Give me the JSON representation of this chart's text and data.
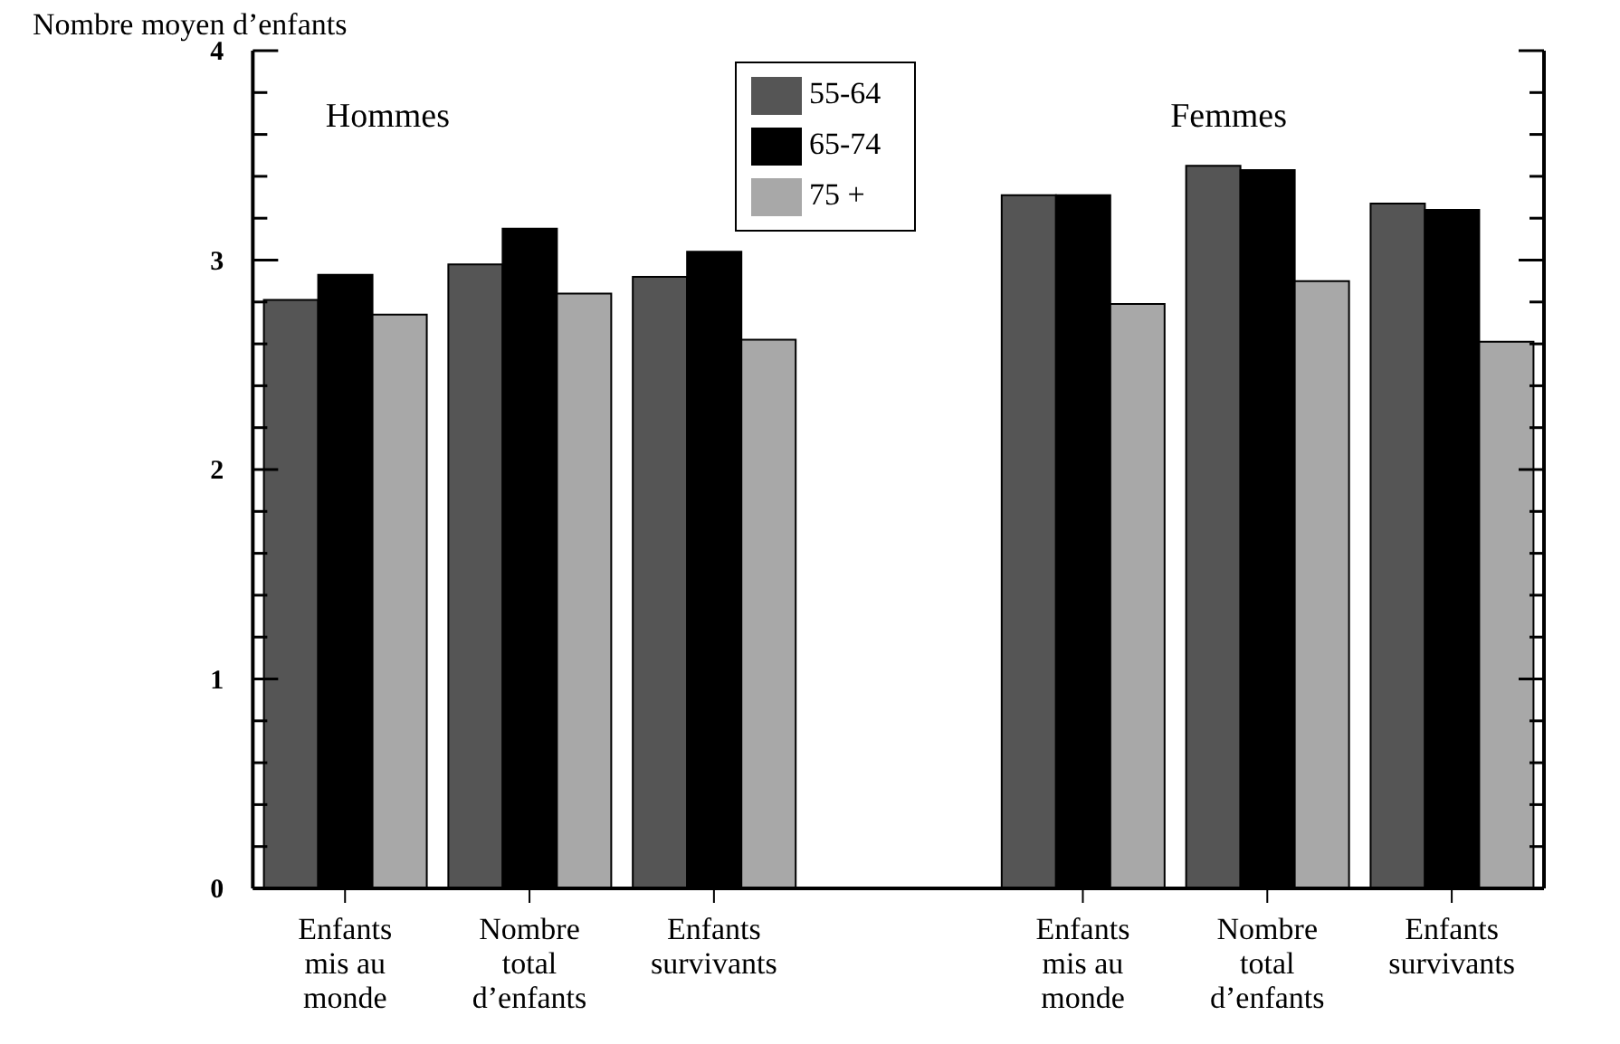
{
  "chart_data": {
    "type": "bar",
    "ylabel": "Nombre moyen d’enfants",
    "categories": [
      "Enfants mis au monde",
      "Nombre total d’enfants",
      "Enfants survivants",
      null,
      "Enfants mis au monde",
      "Nombre total d’enfants",
      "Enfants survivants"
    ],
    "series": [
      {
        "name": "55-64",
        "color": "#555555",
        "values": [
          2.81,
          2.98,
          2.92,
          null,
          3.31,
          3.45,
          3.27
        ]
      },
      {
        "name": "65-74",
        "color": "#000000",
        "values": [
          2.93,
          3.15,
          3.04,
          null,
          3.31,
          3.43,
          3.24
        ]
      },
      {
        "name": "75 +",
        "color": "#a8a8a8",
        "values": [
          2.74,
          2.84,
          2.62,
          null,
          2.79,
          2.9,
          2.61
        ]
      }
    ],
    "annotations": [
      "Hommes",
      "Femmes"
    ],
    "ylim": [
      0,
      4
    ],
    "yticks": [
      0,
      {
        "value": 0.2,
        "label": null
      },
      {
        "value": 0.4,
        "label": null
      },
      {
        "value": 0.6,
        "label": null
      },
      {
        "value": 0.8,
        "label": null
      },
      1,
      {
        "value": 1.2,
        "label": null
      },
      {
        "value": 1.4,
        "label": null
      },
      {
        "value": 1.6,
        "label": null
      },
      {
        "value": 1.8,
        "label": null
      },
      2,
      {
        "value": 2.2,
        "label": null
      },
      {
        "value": 2.4,
        "label": null
      },
      {
        "value": 2.6,
        "label": null
      },
      {
        "value": 2.8,
        "label": null
      },
      3,
      {
        "value": 3.2,
        "label": null
      },
      {
        "value": 3.4,
        "label": null
      },
      {
        "value": 3.6,
        "label": null
      },
      {
        "value": 3.8,
        "label": null
      },
      4
    ],
    "legend": "top",
    "grid": false
  }
}
